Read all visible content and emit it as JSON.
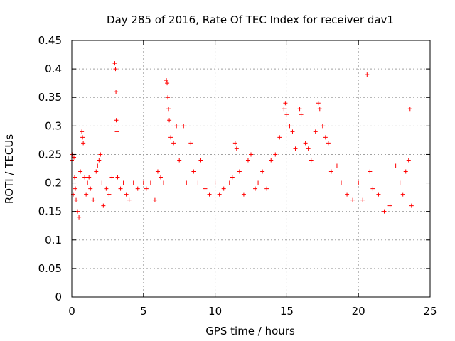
{
  "chart_data": {
    "type": "scatter",
    "title": "Day 285 of 2016, Rate Of TEC Index for receiver dav1",
    "xlabel": "GPS time / hours",
    "ylabel": "ROTI / TECUs",
    "xlim": [
      0,
      25
    ],
    "ylim": [
      0,
      0.45
    ],
    "xticks": [
      0,
      5,
      10,
      15,
      20,
      25
    ],
    "yticks": [
      0,
      0.05,
      0.1,
      0.15,
      0.2,
      0.25,
      0.3,
      0.35,
      0.4,
      0.45
    ],
    "xtick_labels": [
      "0",
      "5",
      "10",
      "15",
      "20",
      "25"
    ],
    "ytick_labels": [
      "0",
      "0.05",
      "0.1",
      "0.15",
      "0.2",
      "0.25",
      "0.3",
      "0.35",
      "0.4",
      "0.45"
    ],
    "grid": true,
    "marker": "+",
    "color": "#ff0000",
    "series": [
      {
        "name": "ROTI",
        "points": [
          [
            0.0,
            0.24
          ],
          [
            0.05,
            0.25
          ],
          [
            0.1,
            0.18
          ],
          [
            0.15,
            0.245
          ],
          [
            0.2,
            0.21
          ],
          [
            0.25,
            0.19
          ],
          [
            0.3,
            0.17
          ],
          [
            0.4,
            0.15
          ],
          [
            0.5,
            0.14
          ],
          [
            0.6,
            0.22
          ],
          [
            0.7,
            0.29
          ],
          [
            0.75,
            0.28
          ],
          [
            0.8,
            0.27
          ],
          [
            0.9,
            0.21
          ],
          [
            1.0,
            0.18
          ],
          [
            1.1,
            0.2
          ],
          [
            1.2,
            0.21
          ],
          [
            1.3,
            0.19
          ],
          [
            1.5,
            0.17
          ],
          [
            1.7,
            0.22
          ],
          [
            1.8,
            0.23
          ],
          [
            1.9,
            0.24
          ],
          [
            2.0,
            0.25
          ],
          [
            2.1,
            0.2
          ],
          [
            2.2,
            0.16
          ],
          [
            2.4,
            0.19
          ],
          [
            2.6,
            0.18
          ],
          [
            2.8,
            0.21
          ],
          [
            3.0,
            0.41
          ],
          [
            3.05,
            0.4
          ],
          [
            3.08,
            0.36
          ],
          [
            3.1,
            0.31
          ],
          [
            3.15,
            0.29
          ],
          [
            3.2,
            0.21
          ],
          [
            3.4,
            0.19
          ],
          [
            3.6,
            0.2
          ],
          [
            3.8,
            0.18
          ],
          [
            4.0,
            0.17
          ],
          [
            4.3,
            0.2
          ],
          [
            4.6,
            0.19
          ],
          [
            5.0,
            0.2
          ],
          [
            5.2,
            0.19
          ],
          [
            5.5,
            0.2
          ],
          [
            5.8,
            0.17
          ],
          [
            6.0,
            0.22
          ],
          [
            6.2,
            0.21
          ],
          [
            6.4,
            0.2
          ],
          [
            6.6,
            0.38
          ],
          [
            6.65,
            0.375
          ],
          [
            6.7,
            0.35
          ],
          [
            6.75,
            0.33
          ],
          [
            6.8,
            0.31
          ],
          [
            6.9,
            0.28
          ],
          [
            7.1,
            0.27
          ],
          [
            7.3,
            0.3
          ],
          [
            7.5,
            0.24
          ],
          [
            7.8,
            0.3
          ],
          [
            8.0,
            0.2
          ],
          [
            8.3,
            0.27
          ],
          [
            8.5,
            0.22
          ],
          [
            8.8,
            0.2
          ],
          [
            9.0,
            0.24
          ],
          [
            9.3,
            0.19
          ],
          [
            9.6,
            0.18
          ],
          [
            10.0,
            0.2
          ],
          [
            10.3,
            0.18
          ],
          [
            10.6,
            0.19
          ],
          [
            11.0,
            0.2
          ],
          [
            11.2,
            0.21
          ],
          [
            11.4,
            0.27
          ],
          [
            11.5,
            0.26
          ],
          [
            11.7,
            0.22
          ],
          [
            12.0,
            0.18
          ],
          [
            12.3,
            0.24
          ],
          [
            12.5,
            0.25
          ],
          [
            12.8,
            0.19
          ],
          [
            13.0,
            0.2
          ],
          [
            13.3,
            0.22
          ],
          [
            13.6,
            0.19
          ],
          [
            13.9,
            0.24
          ],
          [
            14.2,
            0.25
          ],
          [
            14.5,
            0.28
          ],
          [
            14.8,
            0.33
          ],
          [
            14.9,
            0.34
          ],
          [
            15.0,
            0.32
          ],
          [
            15.2,
            0.3
          ],
          [
            15.4,
            0.29
          ],
          [
            15.6,
            0.26
          ],
          [
            15.9,
            0.33
          ],
          [
            16.0,
            0.32
          ],
          [
            16.3,
            0.27
          ],
          [
            16.5,
            0.26
          ],
          [
            16.7,
            0.24
          ],
          [
            17.0,
            0.29
          ],
          [
            17.2,
            0.34
          ],
          [
            17.3,
            0.33
          ],
          [
            17.5,
            0.3
          ],
          [
            17.7,
            0.28
          ],
          [
            17.9,
            0.27
          ],
          [
            18.1,
            0.22
          ],
          [
            18.5,
            0.23
          ],
          [
            18.8,
            0.2
          ],
          [
            19.2,
            0.18
          ],
          [
            19.6,
            0.17
          ],
          [
            20.0,
            0.2
          ],
          [
            20.3,
            0.17
          ],
          [
            20.6,
            0.39
          ],
          [
            20.8,
            0.22
          ],
          [
            21.0,
            0.19
          ],
          [
            21.4,
            0.18
          ],
          [
            21.8,
            0.15
          ],
          [
            22.2,
            0.16
          ],
          [
            22.6,
            0.23
          ],
          [
            22.9,
            0.2
          ],
          [
            23.1,
            0.18
          ],
          [
            23.3,
            0.22
          ],
          [
            23.5,
            0.24
          ],
          [
            23.6,
            0.33
          ],
          [
            23.7,
            0.16
          ]
        ]
      }
    ]
  }
}
